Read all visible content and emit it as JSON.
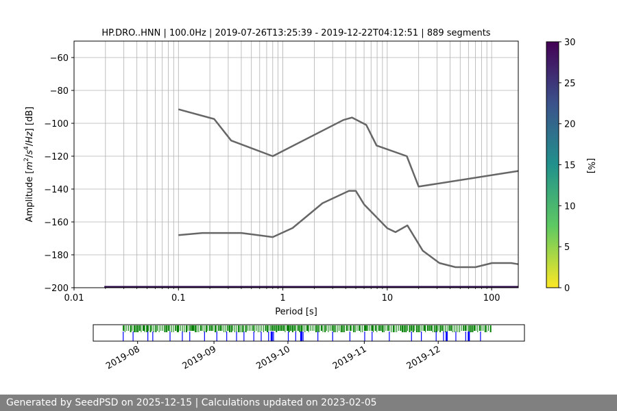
{
  "chart_data": [
    {
      "type": "line",
      "title": "HP.DRO..HNN | 100.0Hz | 2019-07-26T13:25:39 - 2019-12-22T04:12:51 | 889 segments",
      "xlabel": "Period [s]",
      "ylabel_parts": [
        "Amplitude [",
        "m",
        "2",
        "/",
        "s",
        "4",
        "/",
        "Hz",
        "] [dB]"
      ],
      "xscale": "log",
      "xlim": [
        0.01,
        180
      ],
      "ylim": [
        -200,
        -50
      ],
      "x_tick_values": [
        0.01,
        0.1,
        1,
        10,
        100
      ],
      "x_tick_labels": [
        "0.01",
        "0.1",
        "1",
        "10",
        "100"
      ],
      "y_tick_values": [
        -60,
        -80,
        -100,
        -120,
        -140,
        -160,
        -180,
        -200
      ],
      "y_tick_labels": [
        "−60",
        "−80",
        "−100",
        "−120",
        "−140",
        "−160",
        "−180",
        "−200"
      ],
      "grid": "vertical minor and major, horizontal major",
      "series": [
        {
          "role": "high-noise-model",
          "color": "#666666",
          "points": [
            [
              0.1,
              -91.5
            ],
            [
              0.22,
              -97.4
            ],
            [
              0.32,
              -110.5
            ],
            [
              0.8,
              -120
            ],
            [
              3.8,
              -98
            ],
            [
              4.6,
              -96.5
            ],
            [
              6.3,
              -101
            ],
            [
              7.9,
              -113.5
            ],
            [
              15.4,
              -120
            ],
            [
              20,
              -138.5
            ],
            [
              180,
              -129
            ]
          ]
        },
        {
          "role": "low-noise-model",
          "color": "#666666",
          "points": [
            [
              0.1,
              -168
            ],
            [
              0.17,
              -166.7
            ],
            [
              0.4,
              -166.7
            ],
            [
              0.8,
              -169.2
            ],
            [
              1.24,
              -163.7
            ],
            [
              2.4,
              -148.6
            ],
            [
              4.3,
              -141.1
            ],
            [
              5.0,
              -141.1
            ],
            [
              6.0,
              -149.3
            ],
            [
              10.0,
              -163.8
            ],
            [
              12.0,
              -166.2
            ],
            [
              15.6,
              -162.1
            ],
            [
              21.9,
              -177.5
            ],
            [
              31.6,
              -185
            ],
            [
              45,
              -187.5
            ],
            [
              70,
              -187.5
            ],
            [
              101,
              -185
            ],
            [
              154,
              -185
            ],
            [
              180,
              -185.7
            ]
          ]
        }
      ],
      "baseline_band": {
        "x_start": 0.0195,
        "x_end": 180,
        "y": -199.6,
        "color": "#2c0a4a"
      }
    },
    {
      "type": "colorbar",
      "label": "[%]",
      "range": [
        0,
        30
      ],
      "tick_values": [
        0,
        5,
        10,
        15,
        20,
        25,
        30
      ],
      "tick_labels": [
        "0",
        "5",
        "10",
        "15",
        "20",
        "25",
        "30"
      ],
      "colormap": "viridis_r",
      "colors": [
        "#fde725",
        "#5ec962",
        "#21918c",
        "#3b528b",
        "#440154"
      ]
    },
    {
      "type": "timeline",
      "date_range": [
        "2019-07-26",
        "2019-12-22"
      ],
      "tick_dates": [
        "2019-08-01",
        "2019-09-01",
        "2019-10-01",
        "2019-11-01",
        "2019-12-01"
      ],
      "tick_labels": [
        "2019-08",
        "2019-09",
        "2019-10",
        "2019-11",
        "2019-12"
      ],
      "available_color": "#008000",
      "gap_color": "#0000ff",
      "gap_dates": [
        "2019-07-26",
        "2019-07-30",
        "2019-08-05",
        "2019-08-07",
        "2019-08-14",
        "2019-08-19",
        "2019-08-22",
        "2019-08-28",
        "2019-09-02",
        "2019-09-06",
        "2019-09-10",
        "2019-09-13",
        "2019-09-17",
        "2019-09-20",
        "2019-09-23",
        "2019-09-24",
        "2019-09-25",
        "2019-10-01",
        "2019-10-04",
        "2019-10-06",
        "2019-10-07",
        "2019-10-13",
        "2019-10-19",
        "2019-10-26",
        "2019-11-01",
        "2019-11-04",
        "2019-11-11",
        "2019-11-20",
        "2019-11-24",
        "2019-11-30",
        "2019-12-03",
        "2019-12-04",
        "2019-12-08",
        "2019-12-12",
        "2019-12-13",
        "2019-12-18"
      ],
      "wide_gap_dates": [
        "2019-09-24",
        "2019-10-06",
        "2019-12-04",
        "2019-12-13"
      ]
    }
  ],
  "footer": {
    "text": "Generated by SeedPSD on 2025-12-15 | Calculations updated on 2023-02-05"
  }
}
